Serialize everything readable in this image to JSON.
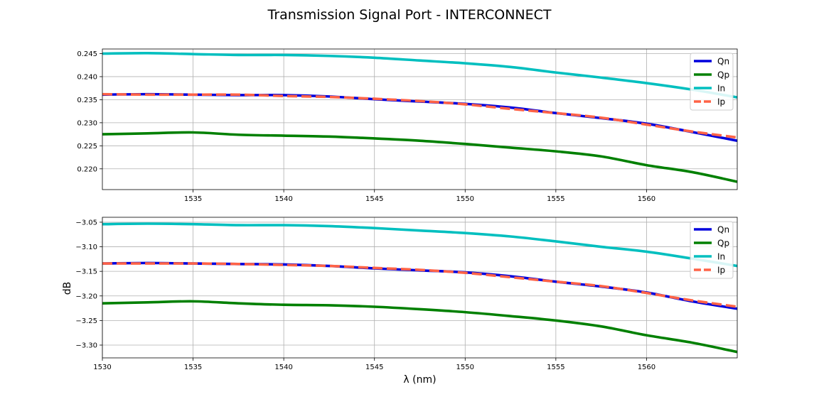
{
  "figure": {
    "title": "Transmission Signal Port - INTERCONNECT"
  },
  "chart_data": [
    {
      "type": "line",
      "title": "",
      "xlabel": "",
      "ylabel": "",
      "xlim": [
        1530,
        1565
      ],
      "ylim": [
        0.2155,
        0.246
      ],
      "grid": true,
      "legend_position": "top-right",
      "x_ticks": [
        1535,
        1540,
        1545,
        1550,
        1555,
        1560
      ],
      "x_tick_labels": [
        "1535",
        "1540",
        "1545",
        "1550",
        "1555",
        "1560"
      ],
      "y_ticks": [
        0.22,
        0.225,
        0.23,
        0.235,
        0.24,
        0.245
      ],
      "y_tick_labels": [
        "0.220",
        "0.225",
        "0.230",
        "0.235",
        "0.240",
        "0.245"
      ],
      "x": [
        1530,
        1532.5,
        1535,
        1537.5,
        1540,
        1542.5,
        1545,
        1547.5,
        1550,
        1552.5,
        1555,
        1557.5,
        1560,
        1562.5,
        1565
      ],
      "series": [
        {
          "name": "Qn",
          "color": "#0000dd",
          "style": "solid",
          "values": [
            0.2361,
            0.2362,
            0.2361,
            0.236,
            0.236,
            0.2357,
            0.2351,
            0.2346,
            0.2341,
            0.2333,
            0.2321,
            0.231,
            0.2298,
            0.228,
            0.2261
          ]
        },
        {
          "name": "Qp",
          "color": "#008000",
          "style": "solid",
          "values": [
            0.2275,
            0.2277,
            0.2279,
            0.2274,
            0.2272,
            0.227,
            0.2266,
            0.2261,
            0.2254,
            0.2246,
            0.2238,
            0.2227,
            0.2208,
            0.2193,
            0.2172
          ]
        },
        {
          "name": "In",
          "color": "#00bfbf",
          "style": "solid",
          "values": [
            0.245,
            0.2451,
            0.2449,
            0.2447,
            0.2447,
            0.2445,
            0.2441,
            0.2435,
            0.2429,
            0.2421,
            0.2409,
            0.2398,
            0.2386,
            0.2372,
            0.2355
          ]
        },
        {
          "name": "Ip",
          "color": "#ff6347",
          "style": "dashed",
          "values": [
            0.2362,
            0.2361,
            0.2361,
            0.2361,
            0.2358,
            0.2356,
            0.2352,
            0.2347,
            0.234,
            0.233,
            0.2321,
            0.2311,
            0.2296,
            0.2281,
            0.2268
          ]
        }
      ]
    },
    {
      "type": "line",
      "title": "",
      "xlabel": "λ (nm)",
      "ylabel": "dB",
      "xlim": [
        1530,
        1565
      ],
      "ylim": [
        -3.326,
        -3.04
      ],
      "grid": true,
      "legend_position": "top-right",
      "x_ticks": [
        1530,
        1535,
        1540,
        1545,
        1550,
        1555,
        1560
      ],
      "x_tick_labels": [
        "1530",
        "1535",
        "1540",
        "1545",
        "1550",
        "1555",
        "1560"
      ],
      "y_ticks": [
        -3.05,
        -3.1,
        -3.15,
        -3.2,
        -3.25,
        -3.3
      ],
      "y_tick_labels": [
        "−3.05",
        "−3.10",
        "−3.15",
        "−3.20",
        "−3.25",
        "−3.30"
      ],
      "x": [
        1530,
        1532.5,
        1535,
        1537.5,
        1540,
        1542.5,
        1545,
        1547.5,
        1550,
        1552.5,
        1555,
        1557.5,
        1560,
        1562.5,
        1565
      ],
      "series": [
        {
          "name": "Qn",
          "color": "#0000dd",
          "style": "solid",
          "values": [
            -3.134,
            -3.133,
            -3.134,
            -3.135,
            -3.136,
            -3.139,
            -3.144,
            -3.148,
            -3.152,
            -3.16,
            -3.171,
            -3.181,
            -3.193,
            -3.211,
            -3.226
          ]
        },
        {
          "name": "Qp",
          "color": "#008000",
          "style": "solid",
          "values": [
            -3.215,
            -3.213,
            -3.211,
            -3.215,
            -3.218,
            -3.219,
            -3.222,
            -3.227,
            -3.233,
            -3.241,
            -3.25,
            -3.262,
            -3.28,
            -3.295,
            -3.314
          ]
        },
        {
          "name": "In",
          "color": "#00bfbf",
          "style": "solid",
          "values": [
            -3.054,
            -3.053,
            -3.054,
            -3.056,
            -3.056,
            -3.058,
            -3.062,
            -3.067,
            -3.072,
            -3.079,
            -3.089,
            -3.1,
            -3.11,
            -3.124,
            -3.139
          ]
        },
        {
          "name": "Ip",
          "color": "#ff6347",
          "style": "dashed",
          "values": [
            -3.134,
            -3.134,
            -3.134,
            -3.135,
            -3.137,
            -3.139,
            -3.143,
            -3.147,
            -3.153,
            -3.162,
            -3.171,
            -3.18,
            -3.194,
            -3.209,
            -3.222
          ]
        }
      ]
    }
  ]
}
